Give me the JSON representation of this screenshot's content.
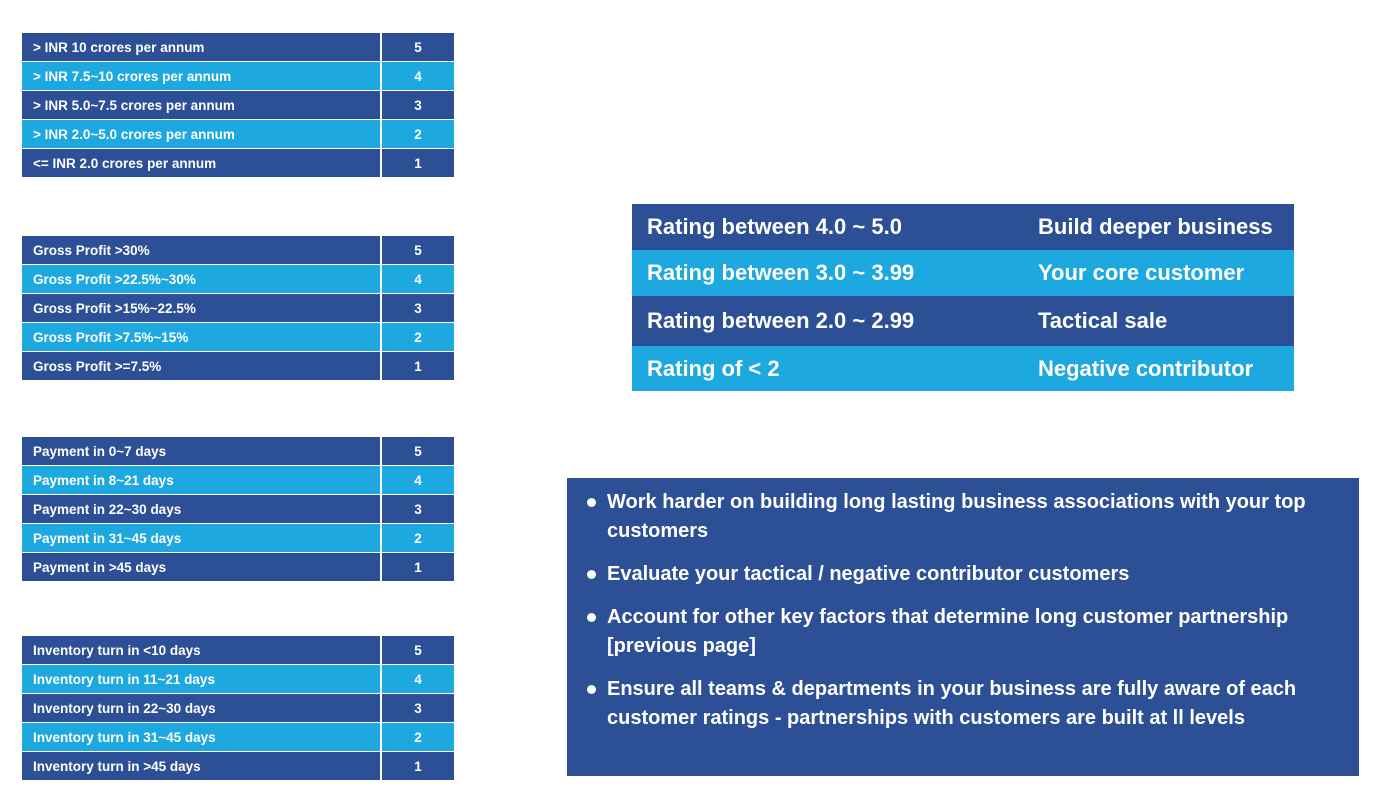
{
  "tables": [
    {
      "rows": [
        {
          "criterion": "> INR 10 crores per annum",
          "score": "5"
        },
        {
          "criterion": "> INR 7.5~10 crores per annum",
          "score": "4"
        },
        {
          "criterion": "> INR 5.0~7.5 crores per annum",
          "score": "3"
        },
        {
          "criterion": "> INR 2.0~5.0 crores per annum",
          "score": "2"
        },
        {
          "criterion": "<= INR 2.0 crores per annum",
          "score": "1"
        }
      ]
    },
    {
      "rows": [
        {
          "criterion": "Gross Profit >30%",
          "score": "5"
        },
        {
          "criterion": "Gross Profit >22.5%~30%",
          "score": "4"
        },
        {
          "criterion": "Gross Profit >15%~22.5%",
          "score": "3"
        },
        {
          "criterion": "Gross Profit >7.5%~15%",
          "score": "2"
        },
        {
          "criterion": "Gross Profit >=7.5%",
          "score": "1"
        }
      ]
    },
    {
      "rows": [
        {
          "criterion": "Payment in 0~7 days",
          "score": "5"
        },
        {
          "criterion": "Payment in 8~21 days",
          "score": "4"
        },
        {
          "criterion": "Payment in 22~30 days",
          "score": "3"
        },
        {
          "criterion": "Payment in 31~45 days",
          "score": "2"
        },
        {
          "criterion": "Payment in >45 days",
          "score": "1"
        }
      ]
    },
    {
      "rows": [
        {
          "criterion": "Inventory turn in <10 days",
          "score": "5"
        },
        {
          "criterion": "Inventory turn in 11~21 days",
          "score": "4"
        },
        {
          "criterion": "Inventory turn in 22~30 days",
          "score": "3"
        },
        {
          "criterion": "Inventory turn in 31~45 days",
          "score": "2"
        },
        {
          "criterion": "Inventory turn in >45 days",
          "score": "1"
        }
      ]
    }
  ],
  "ratings": [
    {
      "range": "Rating between 4.0 ~ 5.0",
      "action": "Build deeper business"
    },
    {
      "range": "Rating between 3.0 ~ 3.99",
      "action": "Your core customer"
    },
    {
      "range": "Rating between 2.0 ~ 2.99",
      "action": "Tactical sale"
    },
    {
      "range": "Rating of < 2",
      "action": "Negative contributor"
    }
  ],
  "advice": [
    "Work harder on building long lasting business associations with your top customers",
    "Evaluate your tactical / negative contributor customers",
    "Account for other key factors that determine long customer partnership [previous page]",
    "Ensure all teams & departments in your business are fully aware of each customer ratings - partnerships with customers are built at ll levels"
  ],
  "colors": {
    "dark_blue": "#2d4f95",
    "light_blue": "#1da8e0",
    "text": "#ffffff"
  }
}
